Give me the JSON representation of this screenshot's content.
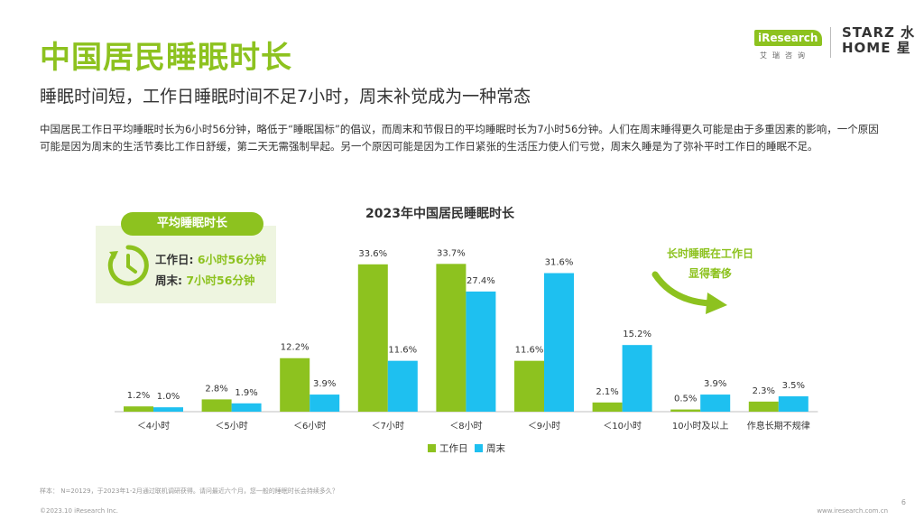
{
  "header": {
    "title": "中国居民睡眠时长",
    "subtitle": "睡眠时间短，工作日睡眠时间不足7小时，周末补觉成为一种常态",
    "description": "中国居民工作日平均睡眠时长为6小时56分钟，略低于“睡眠国标”的倡议，而周末和节假日的平均睡眠时长为7小时56分钟。人们在周末睡得更久可能是由于多重因素的影响，一个原因可能是因为周末的生活节奏比工作日舒缓，第二天无需强制早起。另一个原因可能是因为工作日紧张的生活压力使人们亏觉，周末久睡是为了弥补平时工作日的睡眠不足。"
  },
  "logos": {
    "iresearch": "iResearch",
    "iresearch_cn": "艾瑞咨询",
    "starz_line1": "STARZ 水",
    "starz_line2": "HOME 星"
  },
  "avg_panel": {
    "pill_label": "平均睡眠时长",
    "workday_label": "工作日: ",
    "workday_value": "6小时56分钟",
    "weekend_label": "周末: ",
    "weekend_value": "7小时56分钟"
  },
  "callout": {
    "line1": "长时睡眠在工作日",
    "line2": "显得奢侈"
  },
  "chart_data": {
    "type": "bar",
    "title": "2023年中国居民睡眠时长",
    "categories": [
      "＜4小时",
      "＜5小时",
      "＜6小时",
      "＜7小时",
      "＜8小时",
      "＜9小时",
      "＜10小时",
      "10小时及以上",
      "作息长期不规律"
    ],
    "series": [
      {
        "name": "工作日",
        "color": "#8dc21f",
        "values": [
          1.2,
          2.8,
          12.2,
          33.6,
          33.7,
          11.6,
          2.1,
          0.5,
          2.3
        ]
      },
      {
        "name": "周末",
        "color": "#1ec0f0",
        "values": [
          1.0,
          1.9,
          3.9,
          11.6,
          27.4,
          31.6,
          15.2,
          3.9,
          3.5
        ]
      }
    ],
    "value_suffix": "%",
    "ylim": [
      0,
      35
    ],
    "legend_position": "bottom-center",
    "grid": false
  },
  "footer": {
    "footnote": "样本：  N=20129，于2023年1-2月通过联机调研获得。请问最近六个月，您一般的睡眠时长会持续多久？",
    "copyright": "©2023.10 iResearch Inc.",
    "url": "www.iresearch.com.cn",
    "page": "6"
  }
}
